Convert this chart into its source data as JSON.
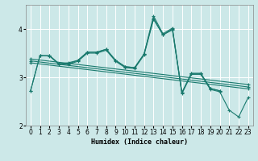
{
  "xlabel": "Humidex (Indice chaleur)",
  "bg_color": "#cce8e8",
  "line_color": "#1a7a6e",
  "xlim": [
    -0.5,
    23.5
  ],
  "ylim": [
    2.0,
    4.5
  ],
  "yticks": [
    2,
    3,
    4
  ],
  "xticks": [
    0,
    1,
    2,
    3,
    4,
    5,
    6,
    7,
    8,
    9,
    10,
    11,
    12,
    13,
    14,
    15,
    16,
    17,
    18,
    19,
    20,
    21,
    22,
    23
  ],
  "lines": [
    {
      "x": [
        0,
        1,
        2,
        3,
        4,
        5,
        6,
        7,
        8,
        9,
        10,
        11,
        12,
        13,
        14,
        15,
        16,
        17,
        18,
        19,
        20,
        21,
        22,
        23
      ],
      "y": [
        2.72,
        3.45,
        3.45,
        3.28,
        3.3,
        3.35,
        3.52,
        3.52,
        3.58,
        3.35,
        3.22,
        3.2,
        3.48,
        4.27,
        3.9,
        4.02,
        2.68,
        3.08,
        3.08,
        2.77,
        2.72,
        null,
        null,
        null
      ]
    },
    {
      "x": [
        0,
        1,
        2,
        3,
        4,
        5,
        6,
        7,
        8,
        9,
        10,
        11,
        12,
        13,
        14,
        15,
        16,
        17,
        18,
        19,
        20,
        21,
        22,
        23
      ],
      "y": [
        null,
        null,
        3.45,
        3.28,
        3.28,
        3.35,
        3.52,
        3.52,
        3.58,
        3.35,
        3.22,
        3.2,
        3.48,
        4.22,
        3.88,
        3.98,
        2.68,
        3.08,
        3.08,
        2.77,
        2.72,
        null,
        null,
        null
      ]
    },
    {
      "x": [
        0,
        23
      ],
      "y": [
        3.38,
        2.85
      ]
    },
    {
      "x": [
        0,
        23
      ],
      "y": [
        3.34,
        2.8
      ]
    },
    {
      "x": [
        0,
        23
      ],
      "y": [
        3.3,
        2.76
      ]
    },
    {
      "x": [
        0,
        1,
        2,
        3,
        4,
        5,
        6,
        7,
        8,
        9,
        10,
        11,
        12,
        13,
        14,
        15,
        16,
        17,
        18,
        19,
        20,
        21,
        22,
        23
      ],
      "y": [
        2.72,
        3.45,
        3.44,
        3.27,
        3.27,
        3.33,
        3.5,
        3.5,
        3.56,
        3.33,
        3.2,
        3.18,
        3.46,
        4.2,
        3.88,
        4.0,
        2.66,
        3.06,
        3.06,
        2.75,
        2.7,
        2.32,
        2.18,
        2.58
      ]
    }
  ]
}
